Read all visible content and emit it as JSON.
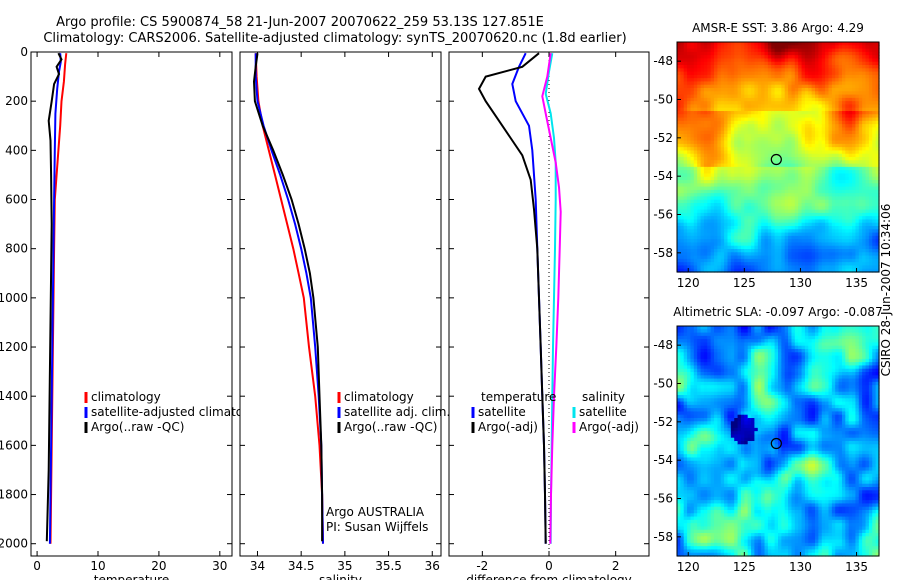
{
  "title": {
    "line1": "Argo profile: CS 5900874_58 21-Jun-2007 20070622_259 53.13S 127.851E",
    "line2": "Climatology: CARS2006. Satellite-adjusted climatology: synTS_20070620.nc (1.8d earlier)"
  },
  "side_label": "CSIRO 28-Jun-2007 10:34:06",
  "colors": {
    "climatology": "#ff0000",
    "satellite": "#0000ff",
    "argo": "#000000",
    "salinity_satellite": "#00e5ee",
    "salinity_argo": "#ff00ff",
    "dotted_zero": "#000000"
  },
  "chart_data": [
    {
      "type": "line",
      "id": "temperature",
      "xlabel": "temperature",
      "ylabel": "",
      "xlim": [
        -1,
        32
      ],
      "ylim": [
        2050,
        0
      ],
      "xticks": [
        0,
        10,
        20,
        30
      ],
      "yticks": [
        0,
        200,
        400,
        600,
        800,
        1000,
        1200,
        1400,
        1600,
        1800,
        2000
      ],
      "legend": [
        "climatology",
        "satellite-adjusted climatolog",
        "Argo(..raw -QC)"
      ],
      "series": [
        {
          "name": "climatology",
          "color": "#ff0000",
          "points": [
            [
              4.8,
              5
            ],
            [
              4.6,
              50
            ],
            [
              4.4,
              120
            ],
            [
              4.0,
              200
            ],
            [
              3.8,
              300
            ],
            [
              3.5,
              400
            ],
            [
              3.2,
              500
            ],
            [
              2.9,
              600
            ],
            [
              2.8,
              800
            ],
            [
              2.7,
              1000
            ],
            [
              2.6,
              1200
            ],
            [
              2.5,
              1400
            ],
            [
              2.4,
              1600
            ],
            [
              2.3,
              1800
            ],
            [
              2.2,
              2000
            ]
          ]
        },
        {
          "name": "satellite-adjusted climatology",
          "color": "#0000ff",
          "points": [
            [
              3.8,
              5
            ],
            [
              3.9,
              40
            ],
            [
              3.6,
              80
            ],
            [
              3.3,
              150
            ],
            [
              3.0,
              250
            ],
            [
              2.9,
              400
            ],
            [
              2.8,
              600
            ],
            [
              2.7,
              800
            ],
            [
              2.6,
              1000
            ],
            [
              2.5,
              1200
            ],
            [
              2.4,
              1400
            ],
            [
              2.3,
              1600
            ],
            [
              2.2,
              1800
            ],
            [
              2.1,
              2000
            ]
          ]
        },
        {
          "name": "Argo(..raw -QC)",
          "color": "#000000",
          "points": [
            [
              3.5,
              5
            ],
            [
              4.0,
              30
            ],
            [
              3.2,
              60
            ],
            [
              3.6,
              90
            ],
            [
              2.8,
              130
            ],
            [
              2.4,
              200
            ],
            [
              1.9,
              280
            ],
            [
              2.2,
              360
            ],
            [
              2.3,
              500
            ],
            [
              2.4,
              700
            ],
            [
              2.3,
              900
            ],
            [
              2.2,
              1100
            ],
            [
              2.1,
              1300
            ],
            [
              2.0,
              1500
            ],
            [
              1.9,
              1700
            ],
            [
              1.7,
              1900
            ],
            [
              1.6,
              1990
            ]
          ]
        }
      ]
    },
    {
      "type": "line",
      "id": "salinity",
      "xlabel": "salinity",
      "ylabel": "",
      "xlim": [
        33.8,
        36.1
      ],
      "ylim": [
        2050,
        0
      ],
      "xticks": [
        34,
        34.5,
        35,
        35.5,
        36
      ],
      "legend": [
        "climatology",
        "satellite adj. clim.",
        "Argo(..raw -QC)"
      ],
      "annotation": [
        "Argo AUSTRALIA",
        "PI: Susan Wijffels"
      ],
      "series": [
        {
          "name": "climatology",
          "color": "#ff0000",
          "points": [
            [
              33.98,
              5
            ],
            [
              33.99,
              100
            ],
            [
              34.01,
              200
            ],
            [
              34.06,
              300
            ],
            [
              34.13,
              400
            ],
            [
              34.2,
              500
            ],
            [
              34.27,
              600
            ],
            [
              34.34,
              700
            ],
            [
              34.41,
              800
            ],
            [
              34.47,
              900
            ],
            [
              34.53,
              1000
            ],
            [
              34.59,
              1200
            ],
            [
              34.66,
              1400
            ],
            [
              34.71,
              1600
            ],
            [
              34.74,
              1800
            ],
            [
              34.75,
              2000
            ]
          ]
        },
        {
          "name": "satellite adj. clim.",
          "color": "#0000ff",
          "points": [
            [
              33.98,
              5
            ],
            [
              33.98,
              100
            ],
            [
              34.0,
              200
            ],
            [
              34.07,
              300
            ],
            [
              34.16,
              400
            ],
            [
              34.26,
              500
            ],
            [
              34.35,
              600
            ],
            [
              34.43,
              700
            ],
            [
              34.5,
              800
            ],
            [
              34.56,
              900
            ],
            [
              34.61,
              1000
            ],
            [
              34.66,
              1200
            ],
            [
              34.7,
              1400
            ],
            [
              34.73,
              1600
            ],
            [
              34.74,
              1800
            ],
            [
              34.75,
              2000
            ]
          ]
        },
        {
          "name": "Argo(..raw -QC)",
          "color": "#000000",
          "points": [
            [
              34.0,
              5
            ],
            [
              33.98,
              60
            ],
            [
              33.96,
              120
            ],
            [
              33.97,
              200
            ],
            [
              34.06,
              300
            ],
            [
              34.18,
              400
            ],
            [
              34.29,
              500
            ],
            [
              34.39,
              600
            ],
            [
              34.47,
              700
            ],
            [
              34.54,
              800
            ],
            [
              34.6,
              900
            ],
            [
              34.64,
              1000
            ],
            [
              34.69,
              1200
            ],
            [
              34.71,
              1400
            ],
            [
              34.73,
              1600
            ],
            [
              34.74,
              1800
            ],
            [
              34.74,
              1990
            ]
          ]
        }
      ]
    },
    {
      "type": "line",
      "id": "difference",
      "xlabel": "difference from climatology",
      "ylabel": "",
      "xlim": [
        -3,
        3
      ],
      "ylim": [
        2050,
        0
      ],
      "xticks": [
        -2,
        0,
        2
      ],
      "legend_left": [
        "temperature",
        "satellite",
        "Argo(-adj)"
      ],
      "legend_right": [
        "salinity",
        "satellite",
        "Argo(-adj)"
      ],
      "series": [
        {
          "name": "temperature satellite",
          "color": "#0000ff",
          "points": [
            [
              -0.7,
              5
            ],
            [
              -0.9,
              60
            ],
            [
              -1.1,
              130
            ],
            [
              -1.0,
              200
            ],
            [
              -0.6,
              300
            ],
            [
              -0.5,
              400
            ],
            [
              -0.4,
              600
            ],
            [
              -0.35,
              800
            ],
            [
              -0.3,
              1000
            ],
            [
              -0.25,
              1200
            ],
            [
              -0.2,
              1400
            ],
            [
              -0.15,
              1600
            ],
            [
              -0.12,
              1800
            ],
            [
              -0.1,
              2000
            ]
          ]
        },
        {
          "name": "temperature Argo(-adj)",
          "color": "#000000",
          "points": [
            [
              -0.3,
              5
            ],
            [
              -0.8,
              60
            ],
            [
              -1.9,
              100
            ],
            [
              -2.1,
              150
            ],
            [
              -1.9,
              200
            ],
            [
              -1.5,
              280
            ],
            [
              -1.1,
              360
            ],
            [
              -0.8,
              420
            ],
            [
              -0.55,
              520
            ],
            [
              -0.45,
              640
            ],
            [
              -0.35,
              800
            ],
            [
              -0.3,
              1000
            ],
            [
              -0.25,
              1200
            ],
            [
              -0.2,
              1400
            ],
            [
              -0.15,
              1600
            ],
            [
              -0.12,
              1800
            ],
            [
              -0.1,
              2000
            ]
          ]
        },
        {
          "name": "salinity satellite",
          "color": "#00e5ee",
          "points": [
            [
              0.1,
              5
            ],
            [
              0.0,
              80
            ],
            [
              -0.1,
              170
            ],
            [
              0.05,
              250
            ],
            [
              0.15,
              350
            ],
            [
              0.2,
              450
            ],
            [
              0.2,
              600
            ],
            [
              0.18,
              800
            ],
            [
              0.15,
              1000
            ],
            [
              0.12,
              1200
            ],
            [
              0.1,
              1400
            ],
            [
              0.08,
              1600
            ],
            [
              0.06,
              1800
            ],
            [
              0.05,
              2000
            ]
          ]
        },
        {
          "name": "salinity Argo(-adj)",
          "color": "#ff00ff",
          "points": [
            [
              0.05,
              5
            ],
            [
              -0.05,
              100
            ],
            [
              -0.2,
              180
            ],
            [
              -0.1,
              250
            ],
            [
              0.05,
              350
            ],
            [
              0.2,
              450
            ],
            [
              0.3,
              550
            ],
            [
              0.35,
              650
            ],
            [
              0.32,
              800
            ],
            [
              0.28,
              1000
            ],
            [
              0.22,
              1200
            ],
            [
              0.15,
              1400
            ],
            [
              0.1,
              1600
            ],
            [
              0.06,
              1800
            ],
            [
              0.04,
              2000
            ]
          ]
        }
      ]
    },
    {
      "type": "heatmap",
      "id": "sst",
      "title": "AMSR-E SST: 3.86 Argo: 4.29",
      "xlim": [
        119,
        137
      ],
      "ylim": [
        -59,
        -47
      ],
      "xticks": [
        120,
        125,
        130,
        135
      ],
      "yticks": [
        -48,
        -50,
        -52,
        -54,
        -56,
        -58
      ],
      "marker": [
        127.851,
        -53.13
      ]
    },
    {
      "type": "heatmap",
      "id": "sla",
      "title": "Altimetric SLA: -0.097 Argo: -0.087",
      "xlim": [
        119,
        137
      ],
      "ylim": [
        -59,
        -47
      ],
      "xticks": [
        120,
        125,
        130,
        135
      ],
      "yticks": [
        -48,
        -50,
        -52,
        -54,
        -56,
        -58
      ],
      "marker": [
        127.851,
        -53.13
      ]
    }
  ]
}
